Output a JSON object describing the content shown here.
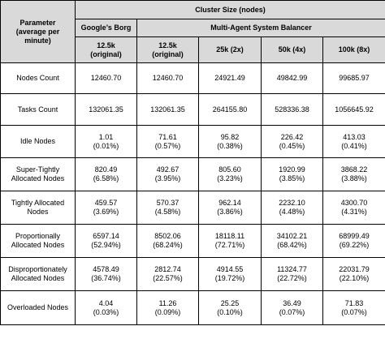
{
  "header": {
    "parameter_label": [
      "Parameter",
      "(average per",
      "minute)"
    ],
    "cluster_size_label": "Cluster Size (nodes)",
    "borg_label": "Google’s Borg",
    "masb_label": "Multi-Agent System Balancer",
    "columns": [
      [
        "12.5k",
        "(original)"
      ],
      [
        "12.5k",
        "(original)"
      ],
      [
        "25k (2x)"
      ],
      [
        "50k (4x)"
      ],
      [
        "100k (8x)"
      ]
    ]
  },
  "rows": [
    {
      "key": "nodes-count",
      "label": [
        "Nodes Count"
      ],
      "cells": [
        [
          "12460.70"
        ],
        [
          "12460.70"
        ],
        [
          "24921.49"
        ],
        [
          "49842.99"
        ],
        [
          "99685.97"
        ]
      ]
    },
    {
      "key": "tasks-count",
      "label": [
        "Tasks Count"
      ],
      "cells": [
        [
          "132061.35"
        ],
        [
          "132061.35"
        ],
        [
          "264155.80"
        ],
        [
          "528336.38"
        ],
        [
          "1056645.92"
        ]
      ]
    },
    {
      "key": "idle-nodes",
      "label": [
        "Idle Nodes"
      ],
      "cells": [
        [
          "1.01",
          "(0.01%)"
        ],
        [
          "71.61",
          "(0.57%)"
        ],
        [
          "95.82",
          "(0.38%)"
        ],
        [
          "226.42",
          "(0.45%)"
        ],
        [
          "413.03",
          "(0.41%)"
        ]
      ]
    },
    {
      "key": "super-tightly-allocated-nodes",
      "label": [
        "Super-Tightly",
        "Allocated Nodes"
      ],
      "cells": [
        [
          "820.49",
          "(6.58%)"
        ],
        [
          "492.67",
          "(3.95%)"
        ],
        [
          "805.60",
          "(3.23%)"
        ],
        [
          "1920.99",
          "(3.85%)"
        ],
        [
          "3868.22",
          "(3.88%)"
        ]
      ]
    },
    {
      "key": "tightly-allocated-nodes",
      "label": [
        "Tightly Allocated",
        "Nodes"
      ],
      "cells": [
        [
          "459.57",
          "(3.69%)"
        ],
        [
          "570.37",
          "(4.58%)"
        ],
        [
          "962.14",
          "(3.86%)"
        ],
        [
          "2232.10",
          "(4.48%)"
        ],
        [
          "4300.70",
          "(4.31%)"
        ]
      ]
    },
    {
      "key": "proportionally-allocated-nodes",
      "label": [
        "Proportionally",
        "Allocated Nodes"
      ],
      "cells": [
        [
          "6597.14",
          "(52.94%)"
        ],
        [
          "8502.06",
          "(68.24%)"
        ],
        [
          "18118.11",
          "(72.71%)"
        ],
        [
          "34102.21",
          "(68.42%)"
        ],
        [
          "68999.49",
          "(69.22%)"
        ]
      ]
    },
    {
      "key": "disproportionately-allocated-nodes",
      "label": [
        "Disproportionately",
        "Allocated Nodes"
      ],
      "cells": [
        [
          "4578.49",
          "(36.74%)"
        ],
        [
          "2812.74",
          "(22.57%)"
        ],
        [
          "4914.55",
          "(19.72%)"
        ],
        [
          "11324.77",
          "(22.72%)"
        ],
        [
          "22031.79",
          "(22.10%)"
        ]
      ]
    },
    {
      "key": "overloaded-nodes",
      "label": [
        "Overloaded Nodes"
      ],
      "cells": [
        [
          "4.04",
          "(0.03%)"
        ],
        [
          "11.26",
          "(0.09%)"
        ],
        [
          "25.25",
          "(0.10%)"
        ],
        [
          "36.49",
          "(0.07%)"
        ],
        [
          "71.83",
          "(0.07%)"
        ]
      ]
    }
  ]
}
